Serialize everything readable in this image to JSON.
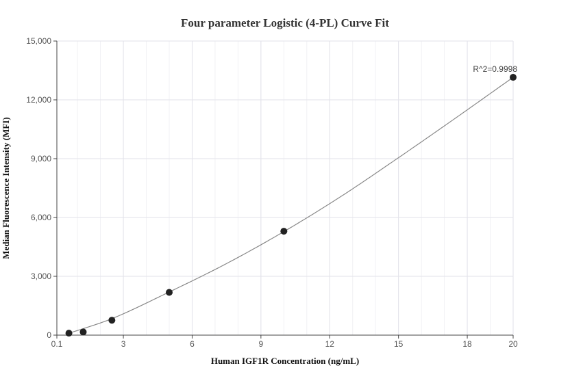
{
  "chart_data": {
    "type": "scatter",
    "title": "Four parameter Logistic (4-PL) Curve Fit",
    "xlabel": "Human IGF1R Concentration (ng/mL)",
    "ylabel": "Median Fluorescence Intensity (MFI)",
    "xlim": [
      0.1,
      20
    ],
    "ylim": [
      0,
      15000
    ],
    "x_ticks": [
      0.1,
      3,
      6,
      9,
      12,
      15,
      18,
      20
    ],
    "x_tick_labels": [
      "0.1",
      "3",
      "6",
      "9",
      "12",
      "15",
      "18",
      "20"
    ],
    "y_ticks": [
      0,
      3000,
      6000,
      9000,
      12000,
      15000
    ],
    "y_tick_labels": [
      "0",
      "3,000",
      "6,000",
      "9,000",
      "12,000",
      "15,000"
    ],
    "grid": true,
    "series": [
      {
        "points": [
          {
            "x": 0.625,
            "y": 100
          },
          {
            "x": 1.25,
            "y": 160
          },
          {
            "x": 2.5,
            "y": 760
          },
          {
            "x": 5,
            "y": 2180
          },
          {
            "x": 10,
            "y": 5300
          },
          {
            "x": 20,
            "y": 13150
          }
        ],
        "color": "#222222"
      }
    ],
    "fit_curve": {
      "model": "4PL",
      "color": "#888888",
      "samples": [
        {
          "x": 0.625,
          "y": 100
        },
        {
          "x": 1.25,
          "y": 330
        },
        {
          "x": 2.5,
          "y": 840
        },
        {
          "x": 5,
          "y": 2200
        },
        {
          "x": 7.5,
          "y": 3650
        },
        {
          "x": 10,
          "y": 5280
        },
        {
          "x": 12.5,
          "y": 7080
        },
        {
          "x": 15,
          "y": 9050
        },
        {
          "x": 17.5,
          "y": 11080
        },
        {
          "x": 20,
          "y": 13150
        }
      ]
    },
    "annotations": [
      {
        "text": "R^2=0.9998",
        "x": 20,
        "y": 13150
      }
    ]
  }
}
